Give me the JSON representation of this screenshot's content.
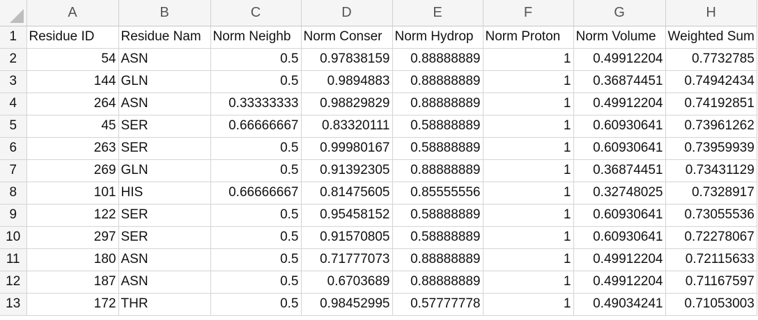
{
  "columns": [
    "A",
    "B",
    "C",
    "D",
    "E",
    "F",
    "G",
    "H"
  ],
  "header_row": {
    "row_number": "1",
    "cells": [
      "Residue ID",
      "Residue Nam",
      "Norm Neighb",
      "Norm Conser",
      "Norm Hydrop",
      "Norm Proton",
      "Norm Volume",
      "Weighted Sum"
    ]
  },
  "rows": [
    {
      "n": "2",
      "cells": [
        "54",
        "ASN",
        "0.5",
        "0.97838159",
        "0.88888889",
        "1",
        "0.49912204",
        "0.7732785"
      ]
    },
    {
      "n": "3",
      "cells": [
        "144",
        "GLN",
        "0.5",
        "0.9894883",
        "0.88888889",
        "1",
        "0.36874451",
        "0.74942434"
      ]
    },
    {
      "n": "4",
      "cells": [
        "264",
        "ASN",
        "0.33333333",
        "0.98829829",
        "0.88888889",
        "1",
        "0.49912204",
        "0.74192851"
      ]
    },
    {
      "n": "5",
      "cells": [
        "45",
        "SER",
        "0.66666667",
        "0.83320111",
        "0.58888889",
        "1",
        "0.60930641",
        "0.73961262"
      ]
    },
    {
      "n": "6",
      "cells": [
        "263",
        "SER",
        "0.5",
        "0.99980167",
        "0.58888889",
        "1",
        "0.60930641",
        "0.73959939"
      ]
    },
    {
      "n": "7",
      "cells": [
        "269",
        "GLN",
        "0.5",
        "0.91392305",
        "0.88888889",
        "1",
        "0.36874451",
        "0.73431129"
      ]
    },
    {
      "n": "8",
      "cells": [
        "101",
        "HIS",
        "0.66666667",
        "0.81475605",
        "0.85555556",
        "1",
        "0.32748025",
        "0.7328917"
      ]
    },
    {
      "n": "9",
      "cells": [
        "122",
        "SER",
        "0.5",
        "0.95458152",
        "0.58888889",
        "1",
        "0.60930641",
        "0.73055536"
      ]
    },
    {
      "n": "10",
      "cells": [
        "297",
        "SER",
        "0.5",
        "0.91570805",
        "0.58888889",
        "1",
        "0.60930641",
        "0.72278067"
      ]
    },
    {
      "n": "11",
      "cells": [
        "180",
        "ASN",
        "0.5",
        "0.71777073",
        "0.88888889",
        "1",
        "0.49912204",
        "0.72115633"
      ]
    },
    {
      "n": "12",
      "cells": [
        "187",
        "ASN",
        "0.5",
        "0.6703689",
        "0.88888889",
        "1",
        "0.49912204",
        "0.71167597"
      ]
    },
    {
      "n": "13",
      "cells": [
        "172",
        "THR",
        "0.5",
        "0.98452995",
        "0.57777778",
        "1",
        "0.49034241",
        "0.71053003"
      ]
    }
  ]
}
